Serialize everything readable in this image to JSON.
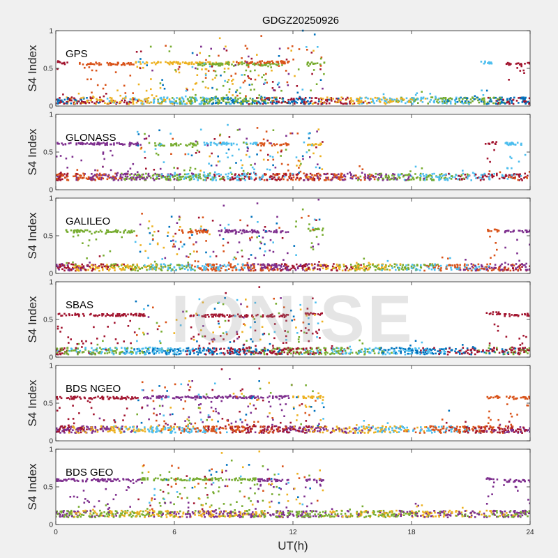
{
  "chart_data": {
    "type": "scatter",
    "title": "GDGZ20250926",
    "xlabel": "UT(h)",
    "ylabel": "S4 Index",
    "xlim": [
      0,
      24
    ],
    "ylim": [
      0,
      1
    ],
    "xticks": [
      "0",
      "6",
      "12",
      "18",
      "24"
    ],
    "yticks": [
      "0",
      "0.5",
      "1"
    ],
    "watermark": "IONISE",
    "series_colors": [
      "#0072BD",
      "#D95319",
      "#EDB120",
      "#7E2F8E",
      "#77AC30",
      "#4DBEEE",
      "#A2142F"
    ],
    "panels": [
      {
        "name": "GPS",
        "baseline": 0.07,
        "baseline_colors": [
          "#0072BD",
          "#A2142F",
          "#EDB120",
          "#4DBEEE",
          "#77AC30"
        ],
        "high_band": [
          {
            "x0": 0,
            "x1": 0.6,
            "y": 0.58,
            "color": "#A2142F"
          },
          {
            "x0": 1.2,
            "x1": 4.0,
            "y": 0.56,
            "color": "#D95319"
          },
          {
            "x0": 4.0,
            "x1": 9.0,
            "y": 0.57,
            "color": "#EDB120"
          },
          {
            "x0": 7.2,
            "x1": 11.5,
            "y": 0.55,
            "color": "#77AC30"
          },
          {
            "x0": 9.0,
            "x1": 11.8,
            "y": 0.58,
            "color": "#D95319"
          },
          {
            "x0": 12.7,
            "x1": 13.6,
            "y": 0.57,
            "color": "#77AC30"
          },
          {
            "x0": 21.5,
            "x1": 22.1,
            "y": 0.58,
            "color": "#4DBEEE"
          },
          {
            "x0": 22.8,
            "x1": 24.0,
            "y": 0.56,
            "color": "#A2142F"
          }
        ],
        "spikes": [
          {
            "x": 8.3,
            "y": 0.9,
            "color": "#EDB120"
          },
          {
            "x": 10.4,
            "y": 0.93,
            "color": "#D95319"
          },
          {
            "x": 12.5,
            "y": 1.0,
            "color": "#0072BD"
          },
          {
            "x": 13.1,
            "y": 0.95,
            "color": "#0072BD"
          },
          {
            "x": 9.6,
            "y": 0.8,
            "color": "#D95319"
          }
        ]
      },
      {
        "name": "GLONASS",
        "baseline": 0.17,
        "baseline_colors": [
          "#A2142F",
          "#D95319",
          "#7E2F8E",
          "#77AC30",
          "#4DBEEE"
        ],
        "high_band": [
          {
            "x0": 0,
            "x1": 4.3,
            "y": 0.61,
            "color": "#7E2F8E"
          },
          {
            "x0": 5.0,
            "x1": 7.2,
            "y": 0.6,
            "color": "#77AC30"
          },
          {
            "x0": 7.5,
            "x1": 10.2,
            "y": 0.61,
            "color": "#4DBEEE"
          },
          {
            "x0": 10.2,
            "x1": 11.8,
            "y": 0.6,
            "color": "#D95319"
          },
          {
            "x0": 12.7,
            "x1": 13.6,
            "y": 0.6,
            "color": "#EDB120"
          },
          {
            "x0": 21.7,
            "x1": 22.3,
            "y": 0.62,
            "color": "#A2142F"
          },
          {
            "x0": 22.6,
            "x1": 24.0,
            "y": 0.61,
            "color": "#4DBEEE"
          }
        ],
        "spikes": [
          {
            "x": 8.7,
            "y": 0.86,
            "color": "#4DBEEE"
          },
          {
            "x": 10.2,
            "y": 0.82,
            "color": "#D95319"
          },
          {
            "x": 9.3,
            "y": 0.8,
            "color": "#7E2F8E"
          },
          {
            "x": 13.3,
            "y": 0.8,
            "color": "#EDB120"
          }
        ]
      },
      {
        "name": "GALILEO",
        "baseline": 0.08,
        "baseline_colors": [
          "#7E2F8E",
          "#A2142F",
          "#EDB120",
          "#77AC30",
          "#4DBEEE",
          "#D95319"
        ],
        "high_band": [
          {
            "x0": 0.5,
            "x1": 4.0,
            "y": 0.56,
            "color": "#77AC30"
          },
          {
            "x0": 6.2,
            "x1": 7.8,
            "y": 0.56,
            "color": "#D95319"
          },
          {
            "x0": 8.2,
            "x1": 11.8,
            "y": 0.56,
            "color": "#7E2F8E"
          },
          {
            "x0": 12.7,
            "x1": 13.6,
            "y": 0.58,
            "color": "#77AC30"
          },
          {
            "x0": 21.8,
            "x1": 22.5,
            "y": 0.57,
            "color": "#D95319"
          },
          {
            "x0": 22.7,
            "x1": 24.0,
            "y": 0.56,
            "color": "#7E2F8E"
          }
        ],
        "spikes": [
          {
            "x": 8.5,
            "y": 0.9,
            "color": "#7E2F8E"
          },
          {
            "x": 10.2,
            "y": 0.93,
            "color": "#7E2F8E"
          },
          {
            "x": 13.3,
            "y": 0.98,
            "color": "#7E2F8E"
          },
          {
            "x": 12.5,
            "y": 0.85,
            "color": "#77AC30"
          }
        ]
      },
      {
        "name": "SBAS",
        "baseline": 0.08,
        "baseline_colors": [
          "#A2142F",
          "#77AC30",
          "#4DBEEE",
          "#0072BD"
        ],
        "high_band": [
          {
            "x0": 0,
            "x1": 4.6,
            "y": 0.56,
            "color": "#A2142F"
          },
          {
            "x0": 6.8,
            "x1": 11.8,
            "y": 0.55,
            "color": "#A2142F"
          },
          {
            "x0": 12.6,
            "x1": 13.5,
            "y": 0.57,
            "color": "#A2142F"
          },
          {
            "x0": 21.8,
            "x1": 22.5,
            "y": 0.58,
            "color": "#A2142F"
          },
          {
            "x0": 22.7,
            "x1": 24.0,
            "y": 0.56,
            "color": "#A2142F"
          }
        ],
        "spikes": [
          {
            "x": 10.3,
            "y": 0.93,
            "color": "#A2142F"
          },
          {
            "x": 8.6,
            "y": 0.85,
            "color": "#A2142F"
          },
          {
            "x": 13.0,
            "y": 0.78,
            "color": "#A2142F"
          }
        ]
      },
      {
        "name": "BDS NGEO",
        "baseline": 0.15,
        "baseline_colors": [
          "#A2142F",
          "#7E2F8E",
          "#EDB120",
          "#4DBEEE",
          "#D95319"
        ],
        "high_band": [
          {
            "x0": 0,
            "x1": 4.3,
            "y": 0.57,
            "color": "#A2142F"
          },
          {
            "x0": 4.3,
            "x1": 11.8,
            "y": 0.58,
            "color": "#7E2F8E"
          },
          {
            "x0": 12.0,
            "x1": 13.6,
            "y": 0.58,
            "color": "#EDB120"
          },
          {
            "x0": 21.8,
            "x1": 22.5,
            "y": 0.58,
            "color": "#D95319"
          },
          {
            "x0": 22.6,
            "x1": 24.0,
            "y": 0.57,
            "color": "#D95319"
          }
        ],
        "spikes": [
          {
            "x": 8.4,
            "y": 0.95,
            "color": "#A2142F"
          },
          {
            "x": 10.3,
            "y": 0.96,
            "color": "#A2142F"
          },
          {
            "x": 8.8,
            "y": 0.82,
            "color": "#7E2F8E"
          },
          {
            "x": 19.9,
            "y": 0.4,
            "color": "#0072BD"
          }
        ]
      },
      {
        "name": "BDS GEO",
        "baseline": 0.14,
        "baseline_colors": [
          "#7E2F8E",
          "#77AC30",
          "#EDB120"
        ],
        "high_band": [
          {
            "x0": 0,
            "x1": 4.3,
            "y": 0.59,
            "color": "#7E2F8E"
          },
          {
            "x0": 4.3,
            "x1": 10.2,
            "y": 0.6,
            "color": "#77AC30"
          },
          {
            "x0": 10.2,
            "x1": 11.8,
            "y": 0.59,
            "color": "#7E2F8E"
          },
          {
            "x0": 12.6,
            "x1": 13.6,
            "y": 0.59,
            "color": "#7E2F8E"
          },
          {
            "x0": 21.8,
            "x1": 22.5,
            "y": 0.6,
            "color": "#7E2F8E"
          },
          {
            "x0": 22.6,
            "x1": 24.0,
            "y": 0.58,
            "color": "#7E2F8E"
          }
        ],
        "spikes": [
          {
            "x": 8.4,
            "y": 0.95,
            "color": "#EDB120"
          },
          {
            "x": 10.3,
            "y": 0.97,
            "color": "#EDB120"
          },
          {
            "x": 8.9,
            "y": 0.85,
            "color": "#77AC30"
          }
        ]
      }
    ]
  }
}
